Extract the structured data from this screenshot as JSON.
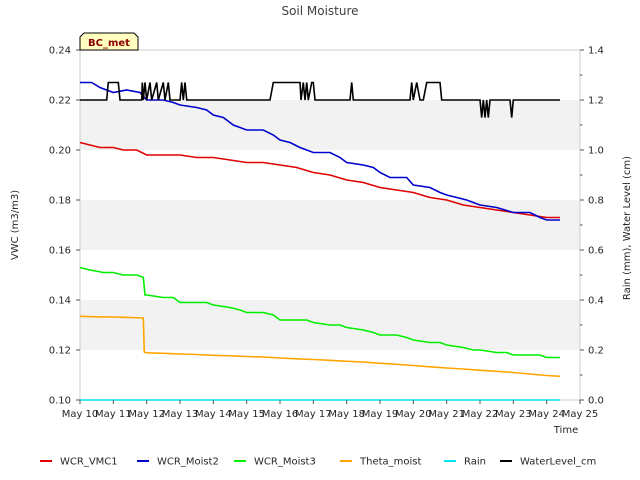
{
  "chart_data": {
    "type": "line",
    "title": "Soil Moisture",
    "badge": "BC_met",
    "xlabel": "Time",
    "ylabel_left": "VWC (m3/m3)",
    "ylabel_right": "Rain (mm), Water Level (cm)",
    "x_ticks": [
      "May 10",
      "May 11",
      "May 12",
      "May 13",
      "May 14",
      "May 15",
      "May 16",
      "May 17",
      "May 18",
      "May 19",
      "May 20",
      "May 21",
      "May 22",
      "May 23",
      "May 24",
      "May 25"
    ],
    "x_range_days": [
      10,
      25
    ],
    "ylim_left": [
      0.1,
      0.24
    ],
    "ylim_right": [
      0.0,
      1.4
    ],
    "y_ticks_left": [
      "0.10",
      "0.12",
      "0.14",
      "0.16",
      "0.18",
      "0.20",
      "0.22",
      "0.24"
    ],
    "y_ticks_right": [
      "0.0",
      "0.2",
      "0.4",
      "0.6",
      "0.8",
      "1.0",
      "1.2",
      "1.4"
    ],
    "grid": "horizontal-bands",
    "legend_position": "bottom",
    "series": [
      {
        "name": "WCR_VMC1",
        "color": "#e00000",
        "axis": "left",
        "points": [
          [
            10.0,
            0.203
          ],
          [
            10.3,
            0.202
          ],
          [
            10.6,
            0.201
          ],
          [
            11.0,
            0.201
          ],
          [
            11.3,
            0.2
          ],
          [
            11.7,
            0.2
          ],
          [
            12.0,
            0.198
          ],
          [
            12.5,
            0.198
          ],
          [
            13.0,
            0.198
          ],
          [
            13.5,
            0.197
          ],
          [
            14.0,
            0.197
          ],
          [
            14.5,
            0.196
          ],
          [
            15.0,
            0.195
          ],
          [
            15.5,
            0.195
          ],
          [
            16.0,
            0.194
          ],
          [
            16.5,
            0.193
          ],
          [
            17.0,
            0.191
          ],
          [
            17.5,
            0.19
          ],
          [
            18.0,
            0.188
          ],
          [
            18.5,
            0.187
          ],
          [
            19.0,
            0.185
          ],
          [
            19.5,
            0.184
          ],
          [
            20.0,
            0.183
          ],
          [
            20.5,
            0.181
          ],
          [
            21.0,
            0.18
          ],
          [
            21.5,
            0.178
          ],
          [
            22.0,
            0.177
          ],
          [
            22.5,
            0.176
          ],
          [
            23.0,
            0.175
          ],
          [
            23.5,
            0.174
          ],
          [
            24.0,
            0.173
          ],
          [
            24.4,
            0.173
          ]
        ]
      },
      {
        "name": "WCR_Moist2",
        "color": "#0000cc",
        "axis": "left",
        "points": [
          [
            10.0,
            0.227
          ],
          [
            10.35,
            0.227
          ],
          [
            10.6,
            0.225
          ],
          [
            11.0,
            0.223
          ],
          [
            11.4,
            0.224
          ],
          [
            11.8,
            0.223
          ],
          [
            12.0,
            0.22
          ],
          [
            12.5,
            0.22
          ],
          [
            12.8,
            0.219
          ],
          [
            13.0,
            0.218
          ],
          [
            13.5,
            0.217
          ],
          [
            13.8,
            0.216
          ],
          [
            14.0,
            0.214
          ],
          [
            14.3,
            0.213
          ],
          [
            14.6,
            0.21
          ],
          [
            15.0,
            0.208
          ],
          [
            15.5,
            0.208
          ],
          [
            15.8,
            0.206
          ],
          [
            16.0,
            0.204
          ],
          [
            16.3,
            0.203
          ],
          [
            16.6,
            0.201
          ],
          [
            17.0,
            0.199
          ],
          [
            17.5,
            0.199
          ],
          [
            17.8,
            0.197
          ],
          [
            18.0,
            0.195
          ],
          [
            18.5,
            0.194
          ],
          [
            18.8,
            0.193
          ],
          [
            19.0,
            0.191
          ],
          [
            19.3,
            0.189
          ],
          [
            19.8,
            0.189
          ],
          [
            20.0,
            0.186
          ],
          [
            20.5,
            0.185
          ],
          [
            20.8,
            0.183
          ],
          [
            21.0,
            0.182
          ],
          [
            21.3,
            0.181
          ],
          [
            21.6,
            0.18
          ],
          [
            22.0,
            0.178
          ],
          [
            22.5,
            0.177
          ],
          [
            23.0,
            0.175
          ],
          [
            23.5,
            0.175
          ],
          [
            23.8,
            0.173
          ],
          [
            24.0,
            0.172
          ],
          [
            24.4,
            0.172
          ]
        ]
      },
      {
        "name": "WCR_Moist3",
        "color": "#00ee00",
        "axis": "left",
        "points": [
          [
            10.0,
            0.153
          ],
          [
            10.3,
            0.152
          ],
          [
            10.7,
            0.151
          ],
          [
            11.0,
            0.151
          ],
          [
            11.3,
            0.15
          ],
          [
            11.7,
            0.15
          ],
          [
            11.9,
            0.149
          ],
          [
            11.95,
            0.142
          ],
          [
            12.0,
            0.142
          ],
          [
            12.5,
            0.141
          ],
          [
            12.8,
            0.141
          ],
          [
            13.0,
            0.139
          ],
          [
            13.5,
            0.139
          ],
          [
            13.8,
            0.139
          ],
          [
            14.0,
            0.138
          ],
          [
            14.5,
            0.137
          ],
          [
            14.8,
            0.136
          ],
          [
            15.0,
            0.135
          ],
          [
            15.5,
            0.135
          ],
          [
            15.8,
            0.134
          ],
          [
            16.0,
            0.132
          ],
          [
            16.5,
            0.132
          ],
          [
            16.8,
            0.132
          ],
          [
            17.0,
            0.131
          ],
          [
            17.5,
            0.13
          ],
          [
            17.8,
            0.13
          ],
          [
            18.0,
            0.129
          ],
          [
            18.5,
            0.128
          ],
          [
            18.8,
            0.127
          ],
          [
            19.0,
            0.126
          ],
          [
            19.5,
            0.126
          ],
          [
            19.8,
            0.125
          ],
          [
            20.0,
            0.124
          ],
          [
            20.5,
            0.123
          ],
          [
            20.8,
            0.123
          ],
          [
            21.0,
            0.122
          ],
          [
            21.5,
            0.121
          ],
          [
            21.8,
            0.12
          ],
          [
            22.0,
            0.12
          ],
          [
            22.5,
            0.119
          ],
          [
            22.8,
            0.119
          ],
          [
            23.0,
            0.118
          ],
          [
            23.5,
            0.118
          ],
          [
            23.8,
            0.118
          ],
          [
            24.0,
            0.117
          ],
          [
            24.4,
            0.117
          ]
        ]
      },
      {
        "name": "Theta_moist",
        "color": "#ffa500",
        "axis": "left",
        "points": [
          [
            10.0,
            0.1335
          ],
          [
            10.5,
            0.1333
          ],
          [
            11.0,
            0.1332
          ],
          [
            11.5,
            0.133
          ],
          [
            11.9,
            0.1328
          ],
          [
            11.93,
            0.1192
          ],
          [
            12.0,
            0.1189
          ],
          [
            12.5,
            0.1187
          ],
          [
            13.0,
            0.1184
          ],
          [
            13.5,
            0.1182
          ],
          [
            14.0,
            0.1179
          ],
          [
            14.5,
            0.1177
          ],
          [
            15.0,
            0.1174
          ],
          [
            15.5,
            0.1172
          ],
          [
            16.0,
            0.1168
          ],
          [
            16.5,
            0.1165
          ],
          [
            17.0,
            0.1162
          ],
          [
            17.5,
            0.1159
          ],
          [
            18.0,
            0.1155
          ],
          [
            18.5,
            0.1152
          ],
          [
            19.0,
            0.1147
          ],
          [
            19.5,
            0.1143
          ],
          [
            20.0,
            0.1138
          ],
          [
            20.5,
            0.1133
          ],
          [
            21.0,
            0.1128
          ],
          [
            21.5,
            0.1124
          ],
          [
            22.0,
            0.1119
          ],
          [
            22.5,
            0.1115
          ],
          [
            23.0,
            0.111
          ],
          [
            23.5,
            0.1104
          ],
          [
            24.0,
            0.1098
          ],
          [
            24.4,
            0.1095
          ]
        ]
      },
      {
        "name": "Rain",
        "color": "#00e5ee",
        "axis": "right",
        "points": [
          [
            10.0,
            0.0
          ],
          [
            24.4,
            0.0
          ]
        ]
      },
      {
        "name": "WaterLevel_cm",
        "color": "#000000",
        "axis": "right",
        "points": [
          [
            10.0,
            1.2
          ],
          [
            10.8,
            1.2
          ],
          [
            10.85,
            1.27
          ],
          [
            11.15,
            1.27
          ],
          [
            11.2,
            1.2
          ],
          [
            11.85,
            1.2
          ],
          [
            11.87,
            1.27
          ],
          [
            11.9,
            1.2
          ],
          [
            11.95,
            1.27
          ],
          [
            12.0,
            1.2
          ],
          [
            12.1,
            1.27
          ],
          [
            12.15,
            1.2
          ],
          [
            12.3,
            1.27
          ],
          [
            12.35,
            1.2
          ],
          [
            12.5,
            1.27
          ],
          [
            12.55,
            1.2
          ],
          [
            12.65,
            1.27
          ],
          [
            12.7,
            1.2
          ],
          [
            13.0,
            1.2
          ],
          [
            13.05,
            1.27
          ],
          [
            13.1,
            1.2
          ],
          [
            13.15,
            1.27
          ],
          [
            13.2,
            1.2
          ],
          [
            15.7,
            1.2
          ],
          [
            15.8,
            1.27
          ],
          [
            16.6,
            1.27
          ],
          [
            16.63,
            1.2
          ],
          [
            16.7,
            1.27
          ],
          [
            16.75,
            1.2
          ],
          [
            16.8,
            1.27
          ],
          [
            16.85,
            1.2
          ],
          [
            16.95,
            1.27
          ],
          [
            17.0,
            1.27
          ],
          [
            17.05,
            1.2
          ],
          [
            18.1,
            1.2
          ],
          [
            18.15,
            1.27
          ],
          [
            18.2,
            1.2
          ],
          [
            19.9,
            1.2
          ],
          [
            19.95,
            1.27
          ],
          [
            20.0,
            1.2
          ],
          [
            20.1,
            1.27
          ],
          [
            20.2,
            1.2
          ],
          [
            20.3,
            1.2
          ],
          [
            20.4,
            1.27
          ],
          [
            20.8,
            1.27
          ],
          [
            20.85,
            1.2
          ],
          [
            22.0,
            1.2
          ],
          [
            22.05,
            1.13
          ],
          [
            22.1,
            1.2
          ],
          [
            22.15,
            1.13
          ],
          [
            22.2,
            1.2
          ],
          [
            22.25,
            1.13
          ],
          [
            22.3,
            1.2
          ],
          [
            22.9,
            1.2
          ],
          [
            22.95,
            1.13
          ],
          [
            23.0,
            1.2
          ],
          [
            24.4,
            1.2
          ]
        ]
      }
    ]
  }
}
